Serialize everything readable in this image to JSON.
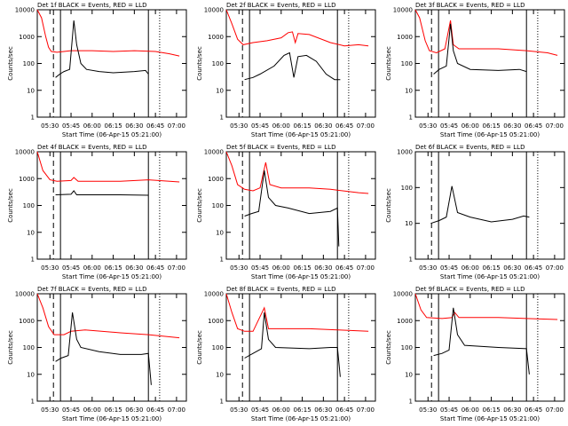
{
  "chart_data": [
    {
      "type": "line",
      "title": "Det 1f BLACK = Events, RED = LLD",
      "xlabel": "Start Time (06-Apr-15 05:21:00)",
      "ylabel": "Counts/sec",
      "yscale": "log",
      "xlim": [
        321,
        427
      ],
      "ylim": [
        1,
        10000
      ],
      "xticks": [
        {
          "value": 330,
          "label": "05:30"
        },
        {
          "value": 345,
          "label": "05:45"
        },
        {
          "value": 360,
          "label": "06:00"
        },
        {
          "value": 375,
          "label": "06:15"
        },
        {
          "value": 390,
          "label": "06:30"
        },
        {
          "value": 405,
          "label": "06:45"
        },
        {
          "value": 420,
          "label": "07:00"
        }
      ],
      "yticks": [
        1,
        10,
        100,
        1000,
        10000
      ],
      "vlines": [
        {
          "x": 332.5,
          "style": "dashed"
        },
        {
          "x": 337.5,
          "style": "solid"
        },
        {
          "x": 400,
          "style": "solid"
        },
        {
          "x": 408,
          "style": "dotted"
        }
      ],
      "series": [
        {
          "color": "#ff0000",
          "x": [
            321,
            324,
            327,
            329,
            331,
            335,
            340,
            345,
            360,
            375,
            390,
            405,
            415,
            422
          ],
          "values": [
            10000,
            5000,
            1000,
            400,
            280,
            260,
            280,
            300,
            300,
            280,
            300,
            280,
            230,
            190
          ]
        },
        {
          "color": "#000000",
          "x": [
            334,
            337,
            340,
            344,
            347,
            349,
            352,
            356,
            365,
            375,
            390,
            398,
            400
          ],
          "values": [
            30,
            40,
            50,
            60,
            4000,
            500,
            100,
            60,
            50,
            45,
            50,
            55,
            40
          ]
        }
      ]
    },
    {
      "type": "line",
      "title": "Det 2f BLACK = Events, RED = LLD",
      "xlabel": "Start Time (06-Apr-15 05:21:00)",
      "ylabel": "Counts/sec",
      "yscale": "log",
      "xlim": [
        321,
        427
      ],
      "ylim": [
        1,
        10000
      ],
      "xticks": [
        {
          "value": 330,
          "label": "05:30"
        },
        {
          "value": 345,
          "label": "05:45"
        },
        {
          "value": 360,
          "label": "06:00"
        },
        {
          "value": 375,
          "label": "06:15"
        },
        {
          "value": 390,
          "label": "06:30"
        },
        {
          "value": 405,
          "label": "06:45"
        },
        {
          "value": 420,
          "label": "07:00"
        }
      ],
      "yticks": [
        1,
        10,
        100,
        1000,
        10000
      ],
      "vlines": [
        {
          "x": 332.5,
          "style": "dashed"
        },
        {
          "x": 337.5,
          "style": "solid"
        },
        {
          "x": 400,
          "style": "solid"
        },
        {
          "x": 408,
          "style": "dotted"
        }
      ],
      "series": [
        {
          "color": "#ff0000",
          "x": [
            321,
            325,
            329,
            333,
            340,
            350,
            360,
            365,
            368,
            370,
            372,
            380,
            395,
            405,
            415,
            422
          ],
          "values": [
            10000,
            3000,
            800,
            500,
            600,
            700,
            900,
            1400,
            1500,
            600,
            1300,
            1200,
            600,
            450,
            500,
            450
          ]
        },
        {
          "color": "#000000",
          "x": [
            334,
            340,
            345,
            355,
            362,
            366,
            369,
            372,
            378,
            385,
            392,
            398,
            402
          ],
          "values": [
            25,
            30,
            40,
            80,
            200,
            250,
            30,
            180,
            200,
            120,
            40,
            25,
            25
          ]
        }
      ]
    },
    {
      "type": "line",
      "title": "Det 3f BLACK = Events, RED = LLD",
      "xlabel": "Start Time (06-Apr-15 05:21:00)",
      "ylabel": "Counts/sec",
      "yscale": "log",
      "xlim": [
        321,
        427
      ],
      "ylim": [
        1,
        10000
      ],
      "xticks": [
        {
          "value": 330,
          "label": "05:30"
        },
        {
          "value": 345,
          "label": "05:45"
        },
        {
          "value": 360,
          "label": "06:00"
        },
        {
          "value": 375,
          "label": "06:15"
        },
        {
          "value": 390,
          "label": "06:30"
        },
        {
          "value": 405,
          "label": "06:45"
        },
        {
          "value": 420,
          "label": "07:00"
        }
      ],
      "yticks": [
        1,
        10,
        100,
        1000,
        10000
      ],
      "vlines": [
        {
          "x": 332.5,
          "style": "dashed"
        },
        {
          "x": 337.5,
          "style": "solid"
        },
        {
          "x": 400,
          "style": "solid"
        },
        {
          "x": 408,
          "style": "dotted"
        }
      ],
      "series": [
        {
          "color": "#ff0000",
          "x": [
            321,
            324,
            328,
            331,
            336,
            342,
            346,
            348,
            352,
            380,
            400,
            415,
            422
          ],
          "values": [
            10000,
            5000,
            700,
            300,
            250,
            350,
            4000,
            500,
            350,
            350,
            300,
            250,
            200
          ]
        },
        {
          "color": "#000000",
          "x": [
            334,
            338,
            343,
            346,
            348,
            351,
            360,
            380,
            395,
            400
          ],
          "values": [
            40,
            60,
            80,
            3000,
            300,
            100,
            60,
            55,
            60,
            50
          ]
        }
      ]
    },
    {
      "type": "line",
      "title": "Det 4f BLACK = Events, RED = LLD",
      "xlabel": "Start Time (06-Apr-15 05:21:00)",
      "ylabel": "Counts/sec",
      "yscale": "log",
      "xlim": [
        321,
        427
      ],
      "ylim": [
        1,
        10000
      ],
      "xticks": [
        {
          "value": 330,
          "label": "05:30"
        },
        {
          "value": 345,
          "label": "05:45"
        },
        {
          "value": 360,
          "label": "06:00"
        },
        {
          "value": 375,
          "label": "06:15"
        },
        {
          "value": 390,
          "label": "06:30"
        },
        {
          "value": 405,
          "label": "06:45"
        },
        {
          "value": 420,
          "label": "07:00"
        }
      ],
      "yticks": [
        1,
        10,
        100,
        1000,
        10000
      ],
      "vlines": [
        {
          "x": 332.5,
          "style": "dashed"
        },
        {
          "x": 337.5,
          "style": "solid"
        },
        {
          "x": 400,
          "style": "solid"
        },
        {
          "x": 408,
          "style": "dotted"
        }
      ],
      "series": [
        {
          "color": "#ff0000",
          "x": [
            321,
            325,
            330,
            335,
            345,
            347,
            350,
            380,
            400,
            422
          ],
          "values": [
            10000,
            2000,
            900,
            800,
            850,
            1100,
            800,
            800,
            900,
            750
          ]
        },
        {
          "color": "#000000",
          "x": [
            334,
            345,
            347,
            349,
            380,
            400
          ],
          "values": [
            250,
            260,
            350,
            250,
            250,
            240
          ]
        }
      ]
    },
    {
      "type": "line",
      "title": "Det 5f BLACK = Events, RED = LLD",
      "xlabel": "Start Time (06-Apr-15 05:21:00)",
      "ylabel": "Counts/sec",
      "yscale": "log",
      "xlim": [
        321,
        427
      ],
      "ylim": [
        1,
        10000
      ],
      "xticks": [
        {
          "value": 330,
          "label": "05:30"
        },
        {
          "value": 345,
          "label": "05:45"
        },
        {
          "value": 360,
          "label": "06:00"
        },
        {
          "value": 375,
          "label": "06:15"
        },
        {
          "value": 390,
          "label": "06:30"
        },
        {
          "value": 405,
          "label": "06:45"
        },
        {
          "value": 420,
          "label": "07:00"
        }
      ],
      "yticks": [
        1,
        10,
        100,
        1000,
        10000
      ],
      "vlines": [
        {
          "x": 332.5,
          "style": "dashed"
        },
        {
          "x": 337.5,
          "style": "solid"
        },
        {
          "x": 400,
          "style": "solid"
        },
        {
          "x": 408,
          "style": "dotted"
        }
      ],
      "series": [
        {
          "color": "#ff0000",
          "x": [
            321,
            325,
            329,
            334,
            340,
            345,
            349,
            352,
            360,
            380,
            395,
            415,
            422
          ],
          "values": [
            10000,
            3000,
            600,
            400,
            350,
            450,
            4000,
            600,
            450,
            450,
            400,
            300,
            280
          ]
        },
        {
          "color": "#000000",
          "x": [
            334,
            339,
            344,
            348,
            351,
            356,
            365,
            380,
            395,
            400,
            401
          ],
          "values": [
            40,
            50,
            60,
            2000,
            200,
            100,
            80,
            50,
            60,
            80,
            3
          ]
        }
      ]
    },
    {
      "type": "line",
      "title": "Det 6f BLACK = Events, RED = LLD",
      "xlabel": "Start Time (06-Apr-15 05:21:00)",
      "ylabel": "Counts/sec",
      "yscale": "log",
      "xlim": [
        321,
        427
      ],
      "ylim": [
        1,
        1000
      ],
      "xticks": [
        {
          "value": 330,
          "label": "05:30"
        },
        {
          "value": 345,
          "label": "05:45"
        },
        {
          "value": 360,
          "label": "06:00"
        },
        {
          "value": 375,
          "label": "06:15"
        },
        {
          "value": 390,
          "label": "06:30"
        },
        {
          "value": 405,
          "label": "06:45"
        },
        {
          "value": 420,
          "label": "07:00"
        }
      ],
      "yticks": [
        1,
        10,
        100,
        1000
      ],
      "vlines": [
        {
          "x": 332.5,
          "style": "dashed"
        },
        {
          "x": 337.5,
          "style": "solid"
        },
        {
          "x": 400,
          "style": "solid"
        },
        {
          "x": 408,
          "style": "dotted"
        }
      ],
      "series": [
        {
          "color": "#000000",
          "x": [
            332,
            338,
            343,
            347,
            351,
            360,
            375,
            390,
            398,
            402
          ],
          "values": [
            10,
            12,
            15,
            110,
            20,
            15,
            11,
            13,
            16,
            15
          ]
        }
      ]
    },
    {
      "type": "line",
      "title": "Det 7f BLACK = Events, RED = LLD",
      "xlabel": "Start Time (06-Apr-15 05:21:00)",
      "ylabel": "Counts/sec",
      "yscale": "log",
      "xlim": [
        321,
        427
      ],
      "ylim": [
        1,
        10000
      ],
      "xticks": [
        {
          "value": 330,
          "label": "05:30"
        },
        {
          "value": 345,
          "label": "05:45"
        },
        {
          "value": 360,
          "label": "06:00"
        },
        {
          "value": 375,
          "label": "06:15"
        },
        {
          "value": 390,
          "label": "06:30"
        },
        {
          "value": 405,
          "label": "06:45"
        },
        {
          "value": 420,
          "label": "07:00"
        }
      ],
      "yticks": [
        1,
        10,
        100,
        1000,
        10000
      ],
      "vlines": [
        {
          "x": 332.5,
          "style": "dashed"
        },
        {
          "x": 337.5,
          "style": "solid"
        },
        {
          "x": 400,
          "style": "solid"
        },
        {
          "x": 408,
          "style": "dotted"
        }
      ],
      "series": [
        {
          "color": "#ff0000",
          "x": [
            321,
            325,
            329,
            333,
            340,
            345,
            355,
            380,
            400,
            415,
            422
          ],
          "values": [
            10000,
            3000,
            600,
            300,
            300,
            400,
            450,
            350,
            300,
            250,
            230
          ]
        },
        {
          "color": "#000000",
          "x": [
            334,
            338,
            343,
            346,
            349,
            352,
            365,
            380,
            395,
            400,
            402
          ],
          "values": [
            30,
            40,
            50,
            2000,
            200,
            100,
            70,
            55,
            55,
            60,
            4
          ]
        }
      ]
    },
    {
      "type": "line",
      "title": "Det 8f BLACK = Events, RED = LLD",
      "xlabel": "Start Time (06-Apr-15 05:21:00)",
      "ylabel": "Counts/sec",
      "yscale": "log",
      "xlim": [
        321,
        427
      ],
      "ylim": [
        1,
        10000
      ],
      "xticks": [
        {
          "value": 330,
          "label": "05:30"
        },
        {
          "value": 345,
          "label": "05:45"
        },
        {
          "value": 360,
          "label": "06:00"
        },
        {
          "value": 375,
          "label": "06:15"
        },
        {
          "value": 390,
          "label": "06:30"
        },
        {
          "value": 405,
          "label": "06:45"
        },
        {
          "value": 420,
          "label": "07:00"
        }
      ],
      "yticks": [
        1,
        10,
        100,
        1000,
        10000
      ],
      "vlines": [
        {
          "x": 332.5,
          "style": "dashed"
        },
        {
          "x": 337.5,
          "style": "solid"
        },
        {
          "x": 400,
          "style": "solid"
        },
        {
          "x": 408,
          "style": "dotted"
        }
      ],
      "series": [
        {
          "color": "#ff0000",
          "x": [
            321,
            325,
            329,
            334,
            340,
            348,
            351,
            380,
            400,
            422
          ],
          "values": [
            10000,
            2000,
            500,
            400,
            400,
            3000,
            500,
            500,
            450,
            400
          ]
        },
        {
          "color": "#000000",
          "x": [
            334,
            340,
            346,
            348,
            351,
            356,
            380,
            395,
            400,
            402
          ],
          "values": [
            40,
            60,
            90,
            2000,
            200,
            100,
            90,
            100,
            100,
            8
          ]
        }
      ]
    },
    {
      "type": "line",
      "title": "Det 9f BLACK = Events, RED = LLD",
      "xlabel": "Start Time (06-Apr-15 05:21:00)",
      "ylabel": "Counts/sec",
      "yscale": "log",
      "xlim": [
        321,
        427
      ],
      "ylim": [
        1,
        10000
      ],
      "xticks": [
        {
          "value": 330,
          "label": "05:30"
        },
        {
          "value": 345,
          "label": "05:45"
        },
        {
          "value": 360,
          "label": "06:00"
        },
        {
          "value": 375,
          "label": "06:15"
        },
        {
          "value": 390,
          "label": "06:30"
        },
        {
          "value": 405,
          "label": "06:45"
        },
        {
          "value": 420,
          "label": "07:00"
        }
      ],
      "yticks": [
        1,
        10,
        100,
        1000,
        10000
      ],
      "vlines": [
        {
          "x": 332.5,
          "style": "dashed"
        },
        {
          "x": 337.5,
          "style": "solid"
        },
        {
          "x": 400,
          "style": "solid"
        },
        {
          "x": 408,
          "style": "dotted"
        }
      ],
      "series": [
        {
          "color": "#ff0000",
          "x": [
            321,
            325,
            329,
            340,
            347,
            349,
            352,
            380,
            400,
            422
          ],
          "values": [
            10000,
            2500,
            1300,
            1200,
            1300,
            2000,
            1300,
            1300,
            1200,
            1100
          ]
        },
        {
          "color": "#000000",
          "x": [
            334,
            340,
            345,
            348,
            351,
            356,
            380,
            400,
            402
          ],
          "values": [
            50,
            60,
            80,
            3000,
            300,
            120,
            100,
            90,
            10
          ]
        }
      ]
    }
  ]
}
